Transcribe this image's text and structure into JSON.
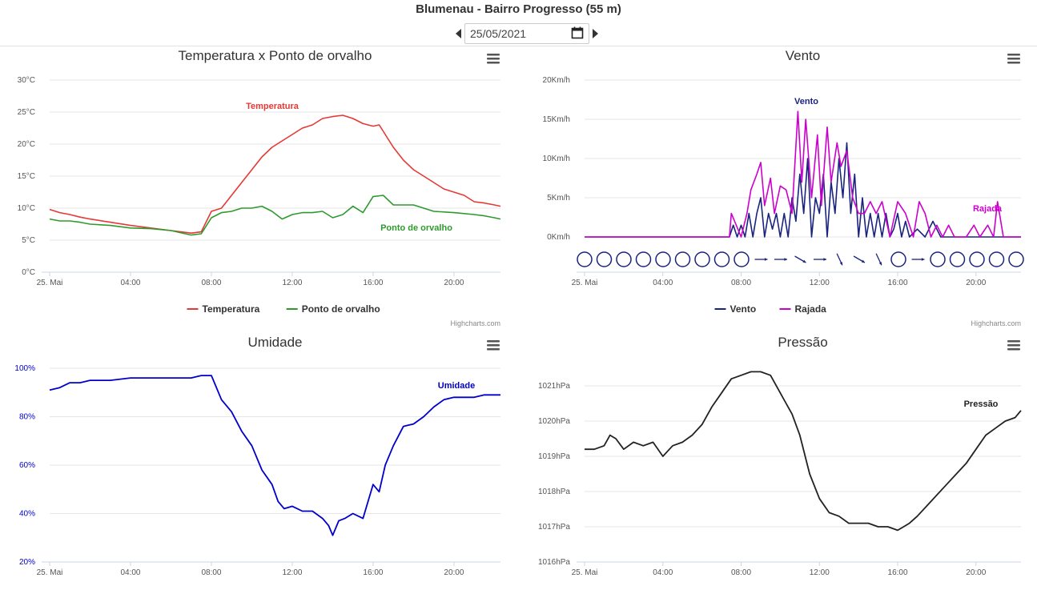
{
  "header": {
    "title": "Blumenau - Bairro Progresso (55 m)",
    "date_value": "25/05/2021"
  },
  "icons": {
    "prev": "chevron-left-icon",
    "next": "chevron-right-icon",
    "calendar": "calendar-icon",
    "menu": "hamburger-menu-icon"
  },
  "colors": {
    "temperature": "#e53935",
    "dew_point": "#2e9a2e",
    "wind": "#1a237e",
    "gust": "#cc00cc",
    "humidity": "#0000cc",
    "pressure": "#222222"
  },
  "chart_data": [
    {
      "type": "line",
      "title": "Temperatura x Ponto de orvalho",
      "credit": "Highcharts.com",
      "x_ticks": [
        "25. Mai",
        "04:00",
        "08:00",
        "12:00",
        "16:00",
        "20:00"
      ],
      "y_ticks": [
        "0°C",
        "5°C",
        "10°C",
        "15°C",
        "20°C",
        "25°C",
        "30°C"
      ],
      "ylim": [
        0,
        30
      ],
      "xlim_hours": [
        0,
        22.3
      ],
      "grid": true,
      "legend_position": "bottom-center",
      "series": [
        {
          "name": "Temperatura",
          "color": "#e53935",
          "x": [
            0,
            0.5,
            1,
            1.5,
            2,
            3,
            4,
            5,
            6,
            7,
            7.5,
            8,
            8.5,
            9,
            9.5,
            10,
            10.5,
            11,
            11.5,
            12,
            12.5,
            13,
            13.5,
            14,
            14.5,
            15,
            15.5,
            16,
            16.3,
            16.6,
            17,
            17.5,
            18,
            18.5,
            19,
            19.5,
            20,
            20.5,
            21,
            21.5,
            22,
            22.3
          ],
          "y": [
            9.8,
            9.3,
            9.0,
            8.6,
            8.3,
            7.8,
            7.3,
            6.9,
            6.5,
            6.1,
            6.3,
            9.5,
            10.0,
            12.0,
            14.0,
            16.0,
            18.0,
            19.5,
            20.5,
            21.5,
            22.5,
            23.0,
            24.0,
            24.3,
            24.5,
            24.0,
            23.2,
            22.8,
            23.0,
            21.5,
            19.5,
            17.5,
            16.0,
            15.0,
            14.0,
            13.0,
            12.5,
            12.0,
            11.0,
            10.8,
            10.5,
            10.3
          ]
        },
        {
          "name": "Ponto de orvalho",
          "color": "#2e9a2e",
          "x": [
            0,
            0.5,
            1,
            1.5,
            2,
            3,
            4,
            5,
            6,
            7,
            7.5,
            8,
            8.5,
            9,
            9.5,
            10,
            10.5,
            11,
            11.5,
            12,
            12.5,
            13,
            13.5,
            14,
            14.5,
            15,
            15.5,
            16,
            16.5,
            17,
            18,
            19,
            20,
            21,
            21.5,
            22,
            22.3
          ],
          "y": [
            8.3,
            8.0,
            8.0,
            7.8,
            7.5,
            7.3,
            6.9,
            6.8,
            6.5,
            5.8,
            6.0,
            8.5,
            9.3,
            9.5,
            10.0,
            10.0,
            10.3,
            9.5,
            8.3,
            9.0,
            9.3,
            9.3,
            9.5,
            8.5,
            9.0,
            10.3,
            9.3,
            11.8,
            12.0,
            10.5,
            10.5,
            9.5,
            9.3,
            9.0,
            8.8,
            8.5,
            8.3
          ]
        }
      ],
      "annotations": [
        {
          "text": "Temperatura",
          "color": "#e53935"
        },
        {
          "text": "Ponto de orvalho",
          "color": "#2e9a2e"
        }
      ]
    },
    {
      "type": "line",
      "title": "Vento",
      "credit": "Highcharts.com",
      "x_ticks": [
        "25. Mai",
        "04:00",
        "08:00",
        "12:00",
        "16:00",
        "20:00"
      ],
      "y_ticks": [
        "0Km/h",
        "5Km/h",
        "10Km/h",
        "15Km/h",
        "20Km/h"
      ],
      "ylim": [
        0,
        20
      ],
      "xlim_hours": [
        0,
        22.3
      ],
      "grid": true,
      "legend_position": "bottom-center",
      "series": [
        {
          "name": "Vento",
          "color": "#1a237e",
          "x": [
            0,
            7.4,
            7.6,
            7.8,
            8.0,
            8.2,
            8.4,
            8.6,
            8.8,
            9.0,
            9.2,
            9.4,
            9.6,
            9.8,
            10.0,
            10.2,
            10.4,
            10.6,
            10.8,
            11.0,
            11.2,
            11.4,
            11.6,
            11.8,
            12.0,
            12.2,
            12.4,
            12.6,
            12.8,
            13.0,
            13.2,
            13.4,
            13.6,
            13.8,
            14.0,
            14.2,
            14.4,
            14.6,
            14.8,
            15.0,
            15.2,
            15.4,
            15.6,
            15.8,
            16.0,
            16.2,
            16.4,
            16.6,
            17.0,
            17.4,
            17.8,
            18.2,
            18.6,
            19.0,
            22.3
          ],
          "y": [
            0,
            0,
            1.5,
            0,
            1.5,
            0,
            3.0,
            0,
            3.0,
            5.0,
            0,
            3.0,
            1.0,
            3.0,
            0,
            3.0,
            0,
            5.0,
            2.0,
            8.0,
            3.0,
            10.0,
            0,
            5.0,
            3.0,
            8.0,
            0,
            7.0,
            3.0,
            10.0,
            5.0,
            12.0,
            3.0,
            8.0,
            0,
            5.0,
            0,
            3.0,
            0,
            3.0,
            0,
            3.0,
            0,
            1.0,
            3.0,
            0,
            2.0,
            0,
            1.0,
            0,
            2.0,
            0,
            0,
            0,
            0
          ]
        },
        {
          "name": "Rajada",
          "color": "#cc00cc",
          "x": [
            0,
            7.4,
            7.5,
            8.0,
            8.3,
            8.5,
            8.8,
            9.0,
            9.2,
            9.5,
            9.7,
            10.0,
            10.3,
            10.6,
            10.9,
            11.1,
            11.3,
            11.6,
            11.9,
            12.1,
            12.4,
            12.6,
            12.9,
            13.1,
            13.4,
            13.7,
            14.0,
            14.3,
            14.6,
            14.9,
            15.2,
            15.6,
            16.0,
            16.4,
            16.8,
            17.1,
            17.4,
            17.7,
            18.0,
            18.3,
            18.6,
            18.9,
            19.5,
            19.9,
            20.2,
            20.6,
            20.9,
            21.1,
            21.4,
            22.3
          ],
          "y": [
            0,
            0,
            3.0,
            0,
            3.0,
            6.0,
            8.0,
            9.5,
            4.0,
            7.5,
            3.0,
            6.5,
            6.0,
            3.0,
            16.0,
            7.0,
            15.0,
            5.0,
            13.0,
            4.0,
            14.0,
            7.0,
            12.0,
            9.0,
            11.0,
            5.0,
            3.0,
            3.0,
            4.5,
            3.0,
            4.5,
            0,
            4.5,
            3.0,
            0,
            4.5,
            3.0,
            0,
            1.5,
            0,
            1.5,
            0,
            0,
            1.5,
            0,
            1.5,
            0,
            4.5,
            0,
            0
          ]
        }
      ],
      "direction_row": [
        "calm",
        "calm",
        "calm",
        "calm",
        "calm",
        "calm",
        "calm",
        "calm",
        "calm",
        "W",
        "W",
        "NW",
        "W",
        "N",
        "NW",
        "N",
        "calm",
        "W",
        "calm",
        "calm",
        "calm",
        "calm",
        "calm"
      ],
      "annotations": [
        {
          "text": "Vento",
          "color": "#1a237e"
        },
        {
          "text": "Rajada",
          "color": "#cc00cc"
        }
      ]
    },
    {
      "type": "line",
      "title": "Umidade",
      "x_ticks": [
        "25. Mai",
        "04:00",
        "08:00",
        "12:00",
        "16:00",
        "20:00"
      ],
      "y_ticks": [
        "20%",
        "40%",
        "60%",
        "80%",
        "100%"
      ],
      "ylim": [
        20,
        100
      ],
      "xlim_hours": [
        0,
        22.3
      ],
      "grid": true,
      "series": [
        {
          "name": "Umidade",
          "color": "#0000cc",
          "x": [
            0,
            0.5,
            1,
            1.5,
            2,
            3,
            4,
            5,
            6,
            7,
            7.5,
            8,
            8.5,
            9,
            9.5,
            10,
            10.5,
            11,
            11.3,
            11.6,
            12,
            12.5,
            13,
            13.5,
            13.8,
            14,
            14.3,
            14.6,
            15,
            15.5,
            16,
            16.3,
            16.6,
            17,
            17.5,
            18,
            18.5,
            19,
            19.5,
            20,
            20.5,
            21,
            21.5,
            22,
            22.3
          ],
          "y": [
            91,
            92,
            94,
            94,
            95,
            95,
            96,
            96,
            96,
            96,
            97,
            97,
            87,
            82,
            74,
            68,
            58,
            52,
            45,
            42,
            43,
            41,
            41,
            38,
            35,
            31,
            37,
            38,
            40,
            38,
            52,
            49,
            60,
            68,
            76,
            77,
            80,
            84,
            87,
            88,
            88,
            88,
            89,
            89,
            89
          ]
        }
      ],
      "annotations": [
        {
          "text": "Umidade",
          "color": "#0000cc"
        }
      ]
    },
    {
      "type": "line",
      "title": "Pressão",
      "x_ticks": [
        "25. Mai",
        "04:00",
        "08:00",
        "12:00",
        "16:00",
        "20:00"
      ],
      "y_ticks": [
        "1016hPa",
        "1017hPa",
        "1018hPa",
        "1019hPa",
        "1020hPa",
        "1021hPa"
      ],
      "ylim": [
        1016,
        1021.5
      ],
      "xlim_hours": [
        0,
        22.3
      ],
      "grid": true,
      "series": [
        {
          "name": "Pressão",
          "color": "#222222",
          "x": [
            0,
            0.5,
            1,
            1.3,
            1.6,
            2,
            2.5,
            3,
            3.5,
            4,
            4.5,
            5,
            5.5,
            6,
            6.5,
            7,
            7.5,
            8,
            8.5,
            9,
            9.5,
            10,
            10.3,
            10.6,
            11,
            11.5,
            12,
            12.5,
            13,
            13.5,
            14,
            14.5,
            15,
            15.5,
            16,
            16.3,
            16.6,
            17,
            17.5,
            18,
            18.5,
            19,
            19.5,
            20,
            20.5,
            21,
            21.5,
            22,
            22.3
          ],
          "y": [
            1019.2,
            1019.2,
            1019.3,
            1019.6,
            1019.5,
            1019.2,
            1019.4,
            1019.3,
            1019.4,
            1019.0,
            1019.3,
            1019.4,
            1019.6,
            1019.9,
            1020.4,
            1020.8,
            1021.2,
            1021.3,
            1021.4,
            1021.4,
            1021.3,
            1020.8,
            1020.5,
            1020.2,
            1019.6,
            1018.5,
            1017.8,
            1017.4,
            1017.3,
            1017.1,
            1017.1,
            1017.1,
            1017.0,
            1017.0,
            1016.9,
            1017.0,
            1017.1,
            1017.3,
            1017.6,
            1017.9,
            1018.2,
            1018.5,
            1018.8,
            1019.2,
            1019.6,
            1019.8,
            1020.0,
            1020.1,
            1020.3
          ]
        }
      ],
      "annotations": [
        {
          "text": "Pressão",
          "color": "#222222"
        }
      ]
    }
  ]
}
